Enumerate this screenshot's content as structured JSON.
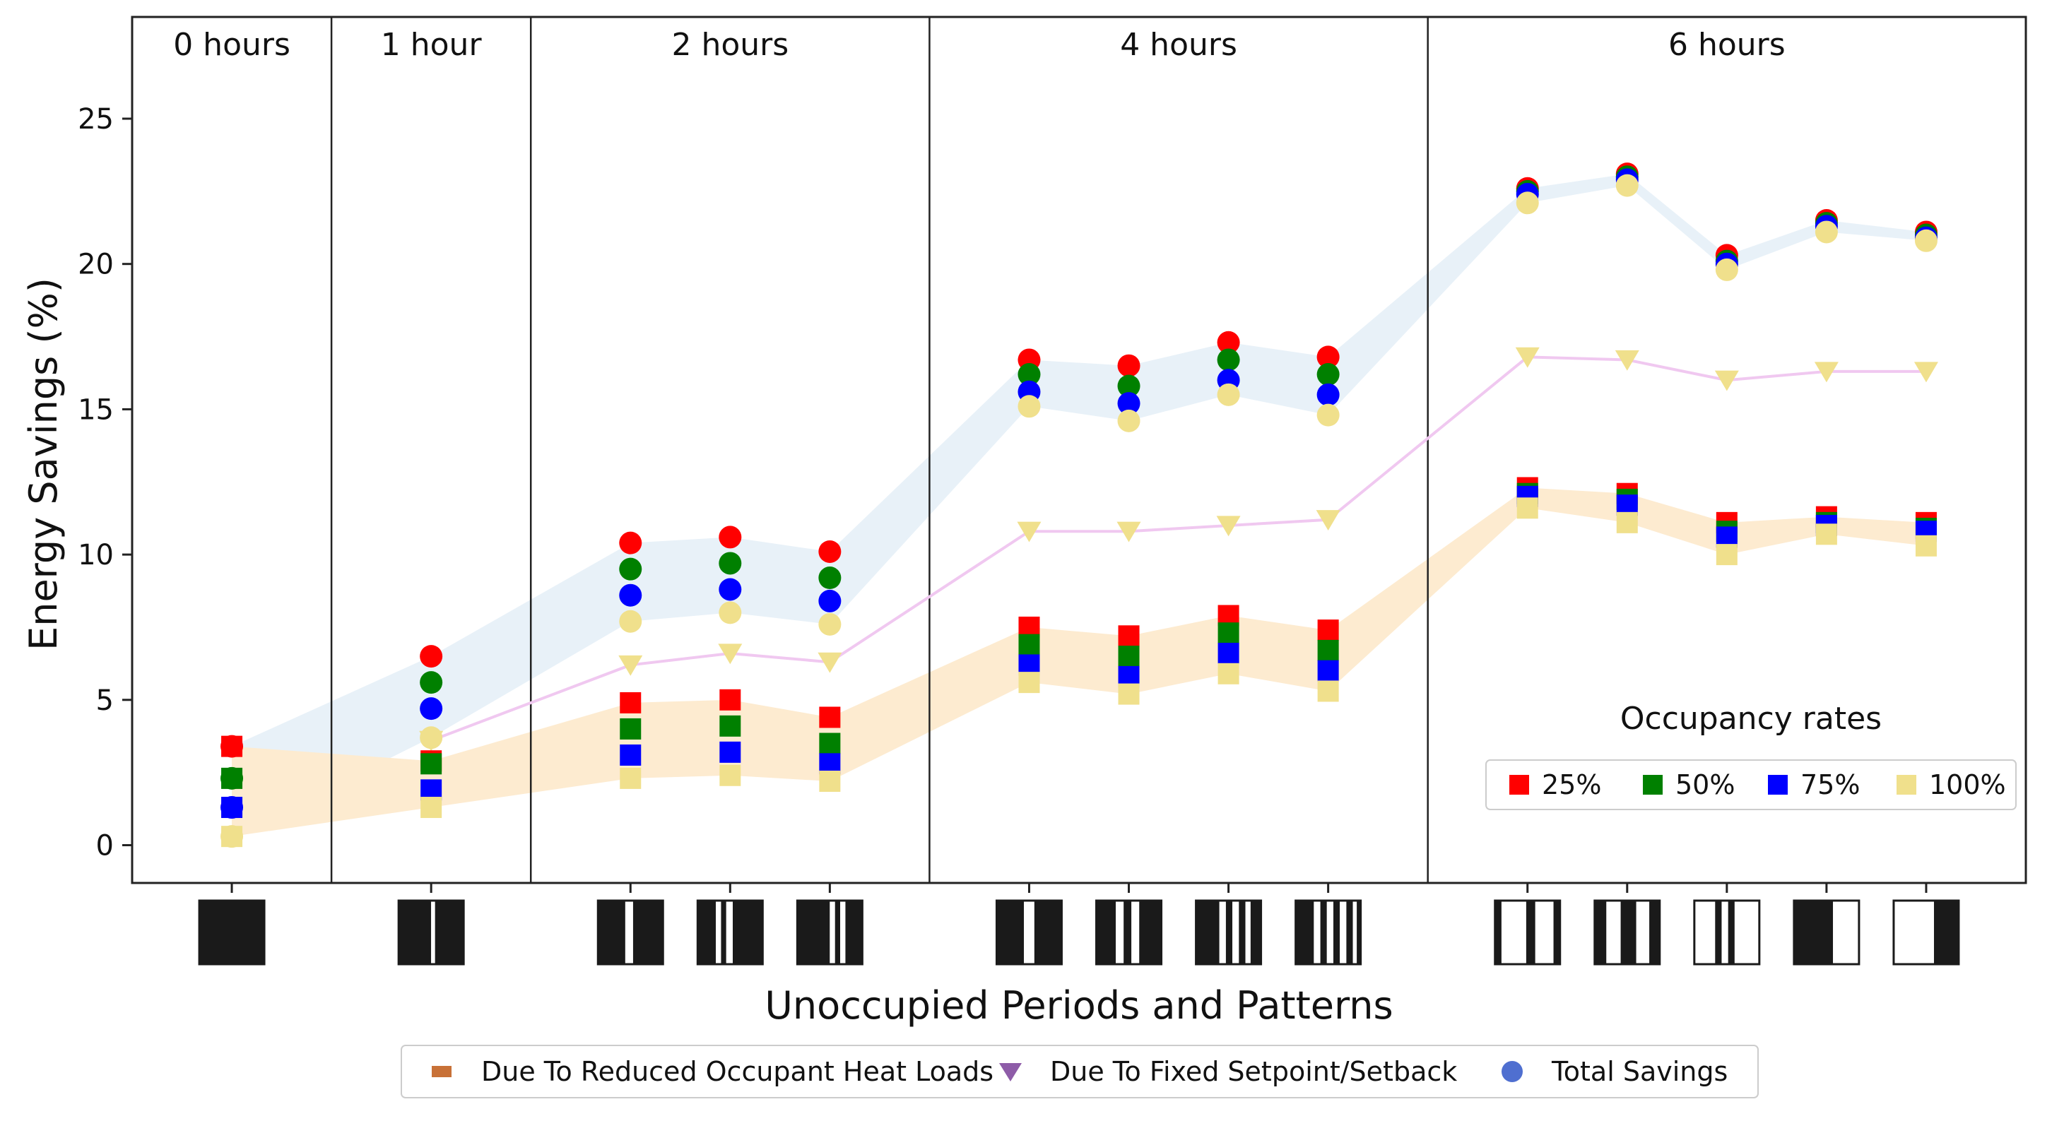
{
  "chart_data": {
    "type": "scatter",
    "title": "",
    "xlabel": "Unoccupied Periods and Patterns",
    "ylabel": "Energy Savings (%)",
    "ylim": [
      -1.3,
      28.5
    ],
    "yticks": [
      0,
      5,
      10,
      15,
      20,
      25
    ],
    "groups": [
      {
        "label": "0 hours",
        "positions": [
          1
        ]
      },
      {
        "label": "1 hour",
        "positions": [
          3
        ]
      },
      {
        "label": "2 hours",
        "positions": [
          5,
          6,
          7
        ]
      },
      {
        "label": "4 hours",
        "positions": [
          9,
          10,
          11,
          12
        ]
      },
      {
        "label": "6 hours",
        "positions": [
          14,
          15,
          16,
          17,
          18
        ]
      }
    ],
    "x_positions": [
      1,
      3,
      5,
      6,
      7,
      9,
      10,
      11,
      12,
      14,
      15,
      16,
      17,
      18
    ],
    "occupancy_legend_title": "Occupancy rates",
    "occupancy_series": [
      {
        "name": "25%",
        "color": "#ff0000",
        "total": [
          3.4,
          6.5,
          10.4,
          10.6,
          10.1,
          16.7,
          16.5,
          17.3,
          16.8,
          22.6,
          23.1,
          20.3,
          21.5,
          21.1
        ],
        "occupant": [
          3.4,
          2.9,
          4.9,
          5.0,
          4.4,
          7.5,
          7.2,
          7.9,
          7.4,
          12.3,
          12.1,
          11.1,
          11.3,
          11.1
        ]
      },
      {
        "name": "50%",
        "color": "#008000",
        "total": [
          2.3,
          5.6,
          9.5,
          9.7,
          9.2,
          16.2,
          15.8,
          16.7,
          16.2,
          22.5,
          23.0,
          20.1,
          21.4,
          21.0
        ],
        "occupant": [
          2.3,
          2.8,
          4.0,
          4.1,
          3.5,
          6.9,
          6.5,
          7.3,
          6.7,
          12.1,
          11.9,
          10.8,
          11.1,
          10.9
        ]
      },
      {
        "name": "75%",
        "color": "#0000ff",
        "total": [
          1.3,
          4.7,
          8.6,
          8.8,
          8.4,
          15.6,
          15.2,
          16.0,
          15.5,
          22.4,
          22.9,
          20.0,
          21.3,
          20.9
        ],
        "occupant": [
          1.3,
          1.9,
          3.1,
          3.2,
          2.8,
          6.2,
          5.8,
          6.6,
          6.0,
          12.0,
          11.7,
          10.6,
          11.0,
          10.8
        ]
      },
      {
        "name": "100%",
        "color": "#f0e08c",
        "total": [
          0.3,
          3.7,
          7.7,
          8.0,
          7.6,
          15.1,
          14.6,
          15.5,
          14.8,
          22.1,
          22.7,
          19.8,
          21.1,
          20.8
        ],
        "occupant": [
          0.3,
          1.3,
          2.3,
          2.4,
          2.2,
          5.6,
          5.2,
          5.9,
          5.3,
          11.6,
          11.1,
          10.0,
          10.7,
          10.3
        ]
      }
    ],
    "setpoint_series": {
      "name": "Due To Fixed Setpoint/Setback",
      "color": "#f0c8f0",
      "marker_color": "#f0e08c",
      "values": [
        null,
        3.6,
        6.2,
        6.6,
        6.3,
        10.8,
        10.8,
        11.0,
        11.2,
        16.8,
        16.7,
        16.0,
        16.3,
        16.3
      ]
    },
    "band_colors": {
      "total": "#e8f1f8",
      "occupant": "#fdebd0"
    },
    "bottom_legend": [
      {
        "label": "Due To Reduced Occupant Heat Loads",
        "marker": "square",
        "color": "#c87137"
      },
      {
        "label": "Due To Fixed Setpoint/Setback",
        "marker": "triangle-down",
        "color": "#8e5ca8"
      },
      {
        "label": "Total Savings",
        "marker": "circle",
        "color": "#4f6fd0"
      }
    ],
    "patterns": [
      [
        [
          0,
          1,
          1
        ]
      ],
      [
        [
          0,
          0.5,
          1
        ],
        [
          0.5,
          0.56,
          0
        ],
        [
          0.56,
          1,
          1
        ]
      ],
      [
        [
          0,
          0.42,
          1
        ],
        [
          0.42,
          0.54,
          0
        ],
        [
          0.54,
          1,
          1
        ]
      ],
      [
        [
          0,
          0.28,
          1
        ],
        [
          0.28,
          0.36,
          0
        ],
        [
          0.36,
          0.44,
          1
        ],
        [
          0.44,
          0.54,
          0
        ],
        [
          0.54,
          1,
          1
        ]
      ],
      [
        [
          0,
          0.5,
          1
        ],
        [
          0.5,
          0.58,
          0
        ],
        [
          0.58,
          0.66,
          1
        ],
        [
          0.66,
          0.74,
          0
        ],
        [
          0.74,
          1,
          1
        ]
      ],
      [
        [
          0,
          0.42,
          1
        ],
        [
          0.42,
          0.58,
          0
        ],
        [
          0.58,
          1,
          1
        ]
      ],
      [
        [
          0,
          0.3,
          1
        ],
        [
          0.3,
          0.42,
          0
        ],
        [
          0.42,
          0.54,
          1
        ],
        [
          0.54,
          0.66,
          0
        ],
        [
          0.66,
          1,
          1
        ]
      ],
      [
        [
          0,
          0.36,
          1
        ],
        [
          0.36,
          0.46,
          0
        ],
        [
          0.46,
          0.56,
          1
        ],
        [
          0.56,
          0.66,
          0
        ],
        [
          0.66,
          0.76,
          1
        ],
        [
          0.76,
          0.84,
          0
        ],
        [
          0.84,
          1,
          1
        ]
      ],
      [
        [
          0,
          0.28,
          1
        ],
        [
          0.28,
          0.38,
          0
        ],
        [
          0.38,
          0.48,
          1
        ],
        [
          0.48,
          0.58,
          0
        ],
        [
          0.58,
          0.68,
          1
        ],
        [
          0.68,
          0.78,
          0
        ],
        [
          0.78,
          0.88,
          1
        ],
        [
          0.88,
          0.94,
          0
        ],
        [
          0.94,
          1,
          1
        ]
      ],
      [
        [
          0,
          0.1,
          1
        ],
        [
          0.1,
          0.48,
          0
        ],
        [
          0.48,
          0.62,
          1
        ],
        [
          0.62,
          0.9,
          0
        ],
        [
          0.9,
          1,
          1
        ]
      ],
      [
        [
          0,
          0.18,
          1
        ],
        [
          0.18,
          0.4,
          0
        ],
        [
          0.4,
          0.64,
          1
        ],
        [
          0.64,
          0.84,
          0
        ],
        [
          0.84,
          1,
          1
        ]
      ],
      [
        [
          0,
          0.32,
          0
        ],
        [
          0.32,
          0.42,
          1
        ],
        [
          0.42,
          0.52,
          0
        ],
        [
          0.52,
          0.62,
          1
        ],
        [
          0.62,
          1,
          0
        ]
      ],
      [
        [
          0,
          0.6,
          1
        ],
        [
          0.6,
          1,
          0
        ]
      ],
      [
        [
          0,
          0.62,
          0
        ],
        [
          0.62,
          1,
          1
        ]
      ]
    ]
  }
}
